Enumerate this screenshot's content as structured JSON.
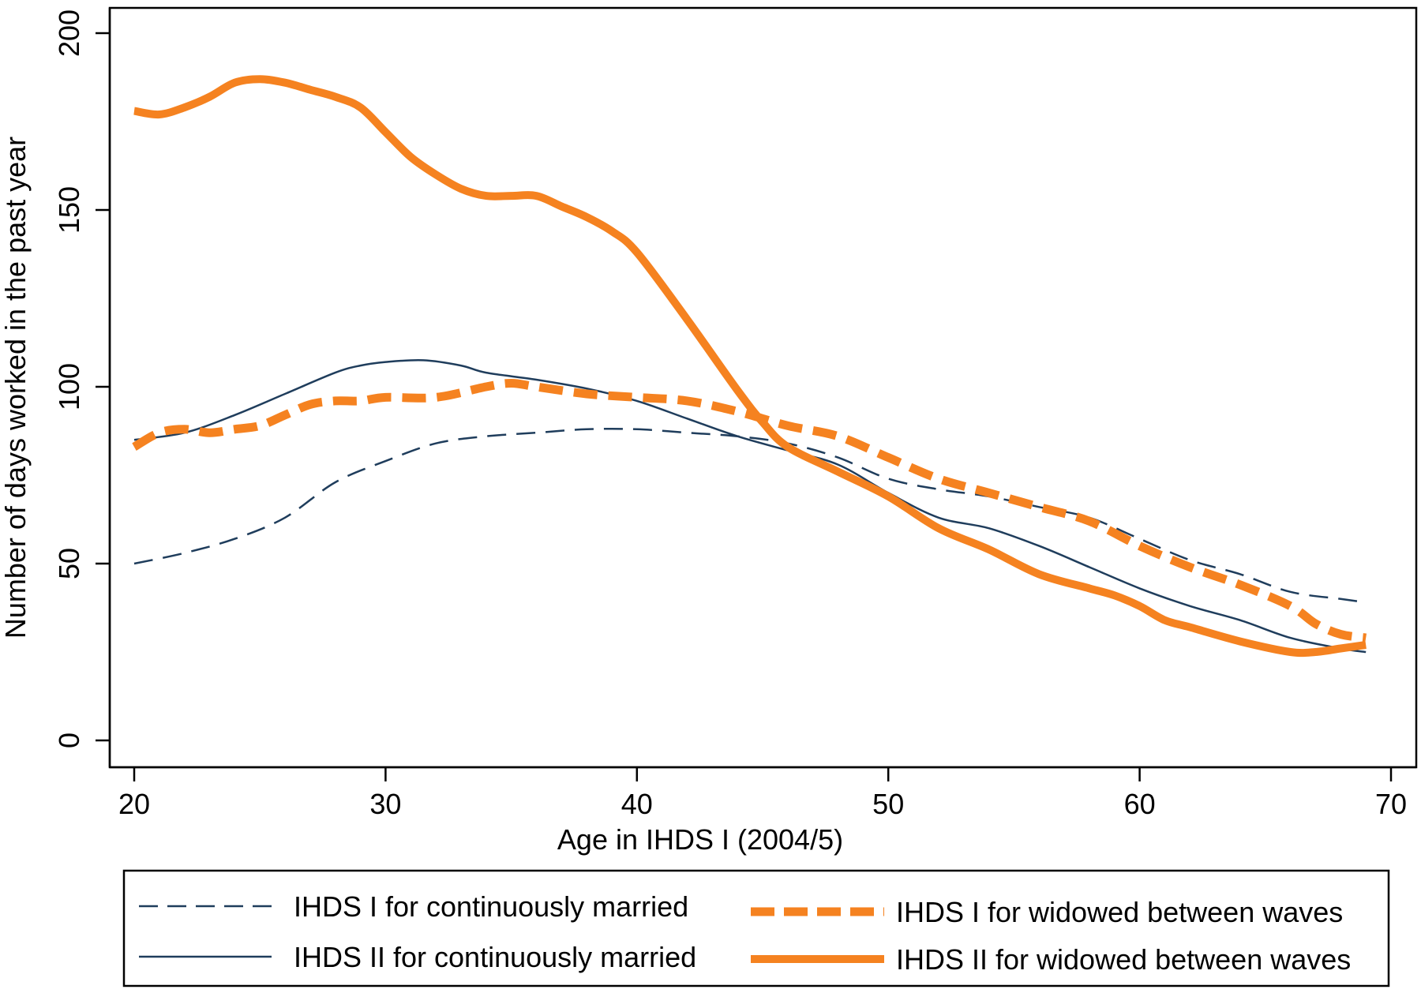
{
  "chart_data": {
    "type": "line",
    "title": "",
    "xlabel": "Age in IHDS I (2004/5)",
    "ylabel": "Number of days worked in the past year",
    "xlim": [
      20,
      70
    ],
    "ylim": [
      0,
      200
    ],
    "xticks": [
      20,
      30,
      40,
      50,
      60,
      70
    ],
    "yticks": [
      0,
      50,
      100,
      150,
      200
    ],
    "legend_position": "bottom",
    "series": [
      {
        "name": "IHDS I for continuously married",
        "style": "thin-dashed",
        "color": "#1f3d5c",
        "x": [
          20,
          22,
          24,
          26,
          28,
          30,
          32,
          34,
          36,
          38,
          40,
          42,
          44,
          46,
          48,
          50,
          52,
          54,
          56,
          58,
          60,
          62,
          64,
          66,
          68,
          69
        ],
        "values": [
          50,
          53,
          57,
          63,
          73,
          79,
          84,
          86,
          87,
          88,
          88,
          87,
          86,
          84,
          80,
          74,
          71,
          69,
          66,
          63,
          57,
          51,
          47,
          42,
          40,
          39
        ]
      },
      {
        "name": "IHDS II for continuously married",
        "style": "thin-solid",
        "color": "#1f3d5c",
        "x": [
          20,
          22,
          24,
          26,
          28,
          29,
          30,
          31.5,
          33,
          34,
          36,
          38,
          40,
          42,
          44,
          46,
          48,
          50,
          52,
          54,
          56,
          58,
          60,
          62,
          64,
          66,
          68,
          69
        ],
        "values": [
          85,
          87,
          92,
          98,
          104,
          106,
          107,
          107.5,
          106,
          104,
          102,
          99.5,
          96,
          91,
          86,
          82,
          78,
          70,
          63,
          60,
          55,
          49,
          43,
          38,
          34,
          29,
          26,
          25
        ]
      },
      {
        "name": "IHDS I for widowed between waves",
        "style": "thick-dashed",
        "color": "#f58220",
        "x": [
          20,
          21,
          22,
          23,
          24,
          25,
          26,
          27,
          28,
          29,
          30,
          32,
          34,
          35,
          36,
          38,
          40,
          42,
          44,
          46,
          48,
          50,
          52,
          54,
          56,
          58,
          60,
          62,
          64,
          66,
          67,
          68,
          69
        ],
        "values": [
          83,
          87,
          88,
          87,
          88,
          89,
          92,
          95,
          96,
          96,
          97,
          97,
          100,
          101,
          100,
          98,
          97,
          96,
          93,
          89,
          86,
          80,
          74,
          70,
          66,
          62,
          55,
          49,
          44,
          38,
          33,
          30,
          29
        ]
      },
      {
        "name": "IHDS II for widowed between waves",
        "style": "thick-solid",
        "color": "#f58220",
        "x": [
          20,
          21,
          22,
          23,
          24,
          25,
          26,
          27,
          28,
          29,
          30,
          31,
          32,
          33,
          34,
          35,
          36,
          37,
          38,
          39,
          40,
          42,
          44,
          45,
          46,
          48,
          50,
          52,
          54,
          56,
          58,
          59,
          60,
          61,
          62,
          64,
          66,
          67,
          68,
          69
        ],
        "values": [
          178,
          177,
          179,
          182,
          186,
          187,
          186,
          184,
          182,
          179,
          172,
          165,
          160,
          156,
          154,
          154,
          154,
          151,
          148,
          144,
          138,
          119,
          99,
          90,
          83,
          76,
          69,
          60,
          54,
          47,
          43,
          41,
          38,
          34,
          32,
          28,
          25,
          25,
          26,
          27
        ]
      }
    ]
  }
}
